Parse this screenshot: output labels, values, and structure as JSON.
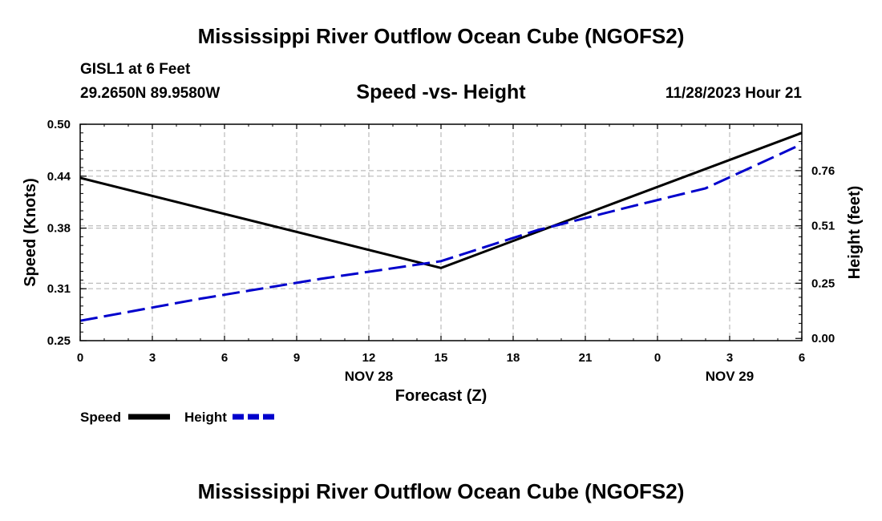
{
  "header": {
    "title": "Mississippi River Outflow Ocean Cube (NGOFS2)",
    "station": "GISL1 at 6 Feet",
    "coords": "29.2650N  89.9580W",
    "datetime": "11/28/2023 Hour 21",
    "footer_title": "Mississippi River Outflow Ocean Cube (NGOFS2)"
  },
  "colors": {
    "speed": "#000000",
    "height": "#0000cc",
    "grid": "#bbbbbb"
  },
  "chart_data": {
    "type": "line",
    "title": "Speed -vs- Height",
    "xlabel": "Forecast (Z)",
    "ylabel": "Speed (Knots)",
    "y2label": "Height (feet)",
    "x": [
      0,
      3,
      6,
      9,
      12,
      15,
      18,
      21,
      24,
      27,
      30
    ],
    "x_tick_labels": [
      "0",
      "3",
      "6",
      "9",
      "12",
      "15",
      "18",
      "21",
      "0",
      "3",
      "6"
    ],
    "date_labels": [
      {
        "x": 12,
        "label": "NOV 28"
      },
      {
        "x": 27,
        "label": "NOV 29"
      }
    ],
    "xlim": [
      0,
      30
    ],
    "ylim": [
      0.25,
      0.5
    ],
    "y_ticks": [
      0.25,
      0.31,
      0.38,
      0.44,
      0.5
    ],
    "y_tick_labels": [
      "0.25",
      "0.31",
      "0.38",
      "0.44",
      "0.50"
    ],
    "y2lim": [
      -0.01,
      0.97
    ],
    "y2_ticks": [
      0.0,
      0.25,
      0.51,
      0.76
    ],
    "y2_tick_labels": [
      "0.00",
      "0.25",
      "0.51",
      "0.76"
    ],
    "series": [
      {
        "name": "Speed",
        "axis": "left",
        "style": "solid",
        "x": [
          0,
          15,
          30
        ],
        "values": [
          0.438,
          0.334,
          0.49
        ]
      },
      {
        "name": "Height",
        "axis": "right",
        "style": "dashed",
        "x": [
          0,
          5,
          10,
          15,
          19,
          23,
          26,
          30
        ],
        "values": [
          0.08,
          0.18,
          0.27,
          0.35,
          0.49,
          0.6,
          0.68,
          0.88
        ]
      }
    ],
    "legend": [
      {
        "label": "Speed"
      },
      {
        "label": "Height"
      }
    ],
    "legend_position": "bottom-left"
  }
}
